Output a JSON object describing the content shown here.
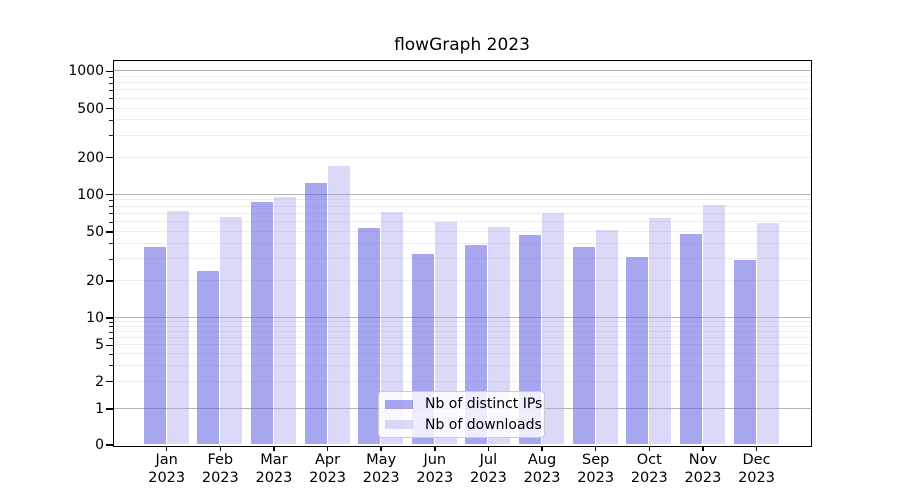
{
  "chart_data": {
    "type": "bar",
    "title": "flowGraph 2023",
    "scale": "symlog",
    "year": "2023",
    "months": [
      "Jan",
      "Feb",
      "Mar",
      "Apr",
      "May",
      "Jun",
      "Jul",
      "Aug",
      "Sep",
      "Oct",
      "Nov",
      "Dec"
    ],
    "categories": [
      "Jan 2023",
      "Feb 2023",
      "Mar 2023",
      "Apr 2023",
      "May 2023",
      "Jun 2023",
      "Jul 2023",
      "Aug 2023",
      "Sep 2023",
      "Oct 2023",
      "Nov 2023",
      "Dec 2023"
    ],
    "yticks": [
      0,
      1,
      2,
      5,
      10,
      20,
      50,
      100,
      200,
      500,
      1000
    ],
    "ylim": [
      0,
      1600
    ],
    "grid": true,
    "legend_position": "lower center",
    "series": [
      {
        "name": "Nb of distinct IPs",
        "color": "rgba(95,95,228,0.55)",
        "solid_color": "#a7a7f0",
        "values": [
          37,
          24,
          87,
          124,
          53,
          33,
          39,
          47,
          37,
          31,
          48,
          29
        ]
      },
      {
        "name": "Nb of downloads",
        "color": "rgba(162,162,238,0.4)",
        "solid_color": "#dadaf8",
        "values": [
          73,
          65,
          95,
          170,
          72,
          60,
          54,
          70,
          51,
          64,
          82,
          58
        ]
      }
    ],
    "colors": {
      "grid_major": "#b4b4b4",
      "grid_minor": "#ededed",
      "axis": "#000000",
      "legend_border": "#cccccc"
    }
  }
}
